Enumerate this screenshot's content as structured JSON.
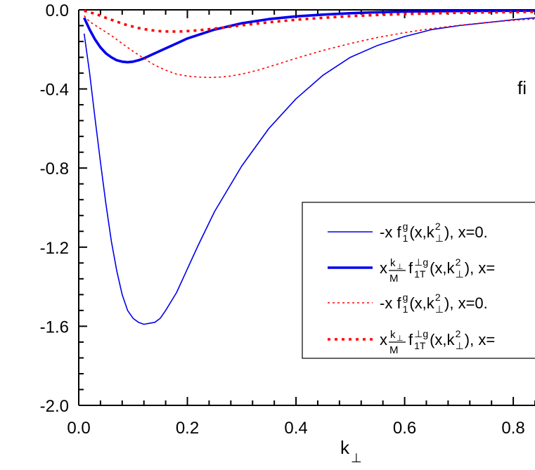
{
  "chart_data": {
    "type": "line",
    "xlabel": "k",
    "xlabel_sub": "⊥",
    "ylabel": "",
    "xlim": [
      0,
      0.84
    ],
    "ylim": [
      -2.0,
      0.0
    ],
    "xticks": [
      "0.0",
      "0.2",
      "0.4",
      "0.6",
      "0.8"
    ],
    "yticks": [
      "0.0",
      "-0.4",
      "-0.8",
      "-1.2",
      "-1.6",
      "-2.0"
    ],
    "panel_label": "fi",
    "legend_position": "center-right",
    "series": [
      {
        "legend": {
          "pre": "-x f",
          "sup": "g",
          "sub": "1",
          "post": " (x,k",
          "post_sup": "2",
          "post_sub": "⊥",
          "tail": "), x=0."
        },
        "color": "#0000ee",
        "style": "solid-thin",
        "x": [
          0.01,
          0.02,
          0.03,
          0.04,
          0.05,
          0.06,
          0.07,
          0.08,
          0.09,
          0.1,
          0.11,
          0.12,
          0.13,
          0.14,
          0.15,
          0.16,
          0.18,
          0.2,
          0.22,
          0.25,
          0.3,
          0.35,
          0.4,
          0.45,
          0.5,
          0.55,
          0.6,
          0.65,
          0.7,
          0.75,
          0.8,
          0.84
        ],
        "y": [
          -0.12,
          -0.32,
          -0.55,
          -0.77,
          -0.98,
          -1.17,
          -1.32,
          -1.44,
          -1.52,
          -1.56,
          -1.58,
          -1.59,
          -1.585,
          -1.58,
          -1.56,
          -1.52,
          -1.43,
          -1.31,
          -1.19,
          -1.02,
          -0.79,
          -0.6,
          -0.45,
          -0.33,
          -0.24,
          -0.18,
          -0.135,
          -0.1,
          -0.08,
          -0.065,
          -0.05,
          -0.04
        ]
      },
      {
        "legend": {
          "pre": "x ",
          "frac_num": "k",
          "frac_num_sub": "⊥",
          "frac_den": "M",
          "mid": " f",
          "sup": "⊥g",
          "sub": "1T",
          "post": " (x,k",
          "post_sup": "2",
          "post_sub": "⊥",
          "tail": "), x="
        },
        "color": "#0000ee",
        "style": "solid-thick",
        "x": [
          0.01,
          0.02,
          0.03,
          0.04,
          0.05,
          0.06,
          0.07,
          0.08,
          0.09,
          0.1,
          0.11,
          0.12,
          0.14,
          0.16,
          0.18,
          0.2,
          0.25,
          0.3,
          0.35,
          0.4,
          0.45,
          0.5,
          0.55,
          0.6,
          0.7,
          0.84
        ],
        "y": [
          -0.04,
          -0.1,
          -0.15,
          -0.19,
          -0.22,
          -0.24,
          -0.255,
          -0.262,
          -0.265,
          -0.262,
          -0.255,
          -0.245,
          -0.22,
          -0.195,
          -0.17,
          -0.145,
          -0.1,
          -0.068,
          -0.047,
          -0.033,
          -0.024,
          -0.017,
          -0.012,
          -0.009,
          -0.006,
          -0.004
        ]
      },
      {
        "legend": {
          "pre": "-x f",
          "sup": "g",
          "sub": "1",
          "post": " (x,k",
          "post_sup": "2",
          "post_sub": "⊥",
          "tail": "), x=0."
        },
        "color": "#ff0000",
        "style": "dotted-thin",
        "x": [
          0.01,
          0.02,
          0.04,
          0.06,
          0.08,
          0.1,
          0.12,
          0.14,
          0.16,
          0.18,
          0.2,
          0.22,
          0.24,
          0.26,
          0.28,
          0.3,
          0.33,
          0.36,
          0.4,
          0.45,
          0.5,
          0.55,
          0.6,
          0.65,
          0.7,
          0.75,
          0.8,
          0.84
        ],
        "y": [
          -0.03,
          -0.06,
          -0.095,
          -0.13,
          -0.17,
          -0.21,
          -0.245,
          -0.28,
          -0.305,
          -0.325,
          -0.335,
          -0.34,
          -0.342,
          -0.34,
          -0.335,
          -0.325,
          -0.305,
          -0.28,
          -0.245,
          -0.205,
          -0.17,
          -0.14,
          -0.115,
          -0.095,
          -0.078,
          -0.064,
          -0.053,
          -0.046
        ]
      },
      {
        "legend": {
          "pre": "x ",
          "frac_num": "k",
          "frac_num_sub": "⊥",
          "frac_den": "M",
          "mid": " f",
          "sup": "⊥g",
          "sub": "1T",
          "post": " (x,k",
          "post_sup": "2",
          "post_sub": "⊥",
          "tail": "), x="
        },
        "color": "#ff0000",
        "style": "dotted-thick",
        "x": [
          0.01,
          0.03,
          0.05,
          0.07,
          0.09,
          0.11,
          0.13,
          0.15,
          0.17,
          0.19,
          0.21,
          0.23,
          0.25,
          0.28,
          0.31,
          0.35,
          0.4,
          0.45,
          0.5,
          0.55,
          0.6,
          0.7,
          0.84
        ],
        "y": [
          -0.005,
          -0.02,
          -0.04,
          -0.06,
          -0.078,
          -0.092,
          -0.102,
          -0.108,
          -0.11,
          -0.109,
          -0.106,
          -0.101,
          -0.095,
          -0.085,
          -0.075,
          -0.063,
          -0.05,
          -0.04,
          -0.032,
          -0.026,
          -0.021,
          -0.015,
          -0.01
        ]
      }
    ]
  }
}
